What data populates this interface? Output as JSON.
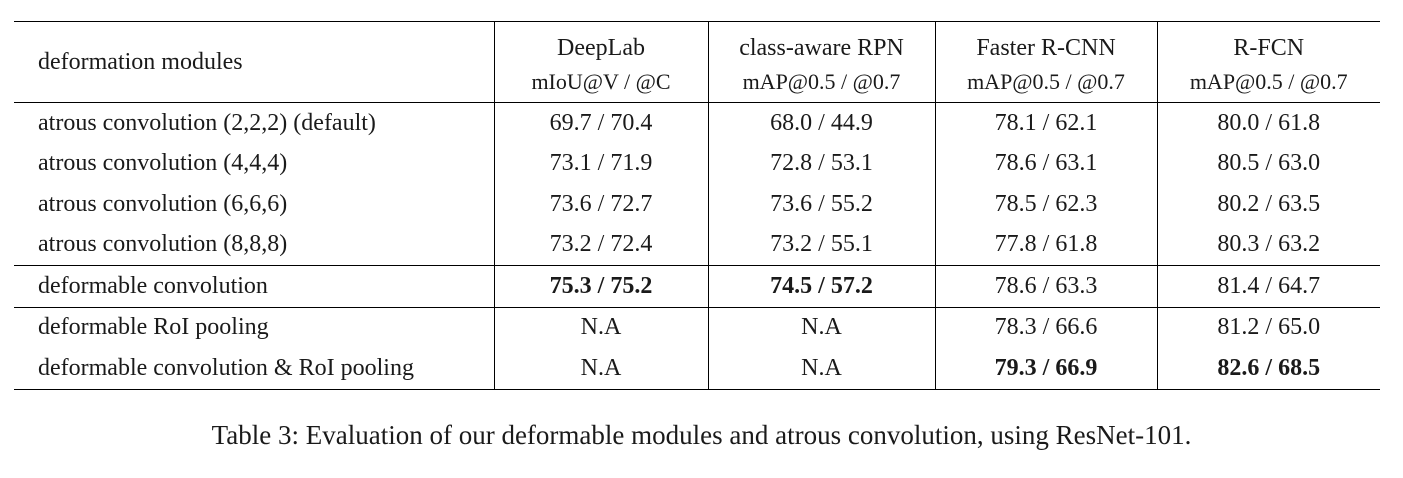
{
  "table": {
    "header": {
      "row_label": "deformation modules",
      "columns": [
        {
          "name": "DeepLab",
          "metric": "mIoU@V / @C"
        },
        {
          "name": "class-aware RPN",
          "metric": "mAP@0.5 / @0.7"
        },
        {
          "name": "Faster R-CNN",
          "metric": "mAP@0.5 / @0.7"
        },
        {
          "name": "R-FCN",
          "metric": "mAP@0.5 / @0.7"
        }
      ]
    },
    "groups": [
      {
        "rows": [
          {
            "label": "atrous convolution (2,2,2) (default)",
            "cells": [
              "69.7 / 70.4",
              "68.0 / 44.9",
              "78.1 / 62.1",
              "80.0 / 61.8"
            ],
            "bold": [
              false,
              false,
              false,
              false
            ]
          },
          {
            "label": "atrous convolution (4,4,4)",
            "cells": [
              "73.1 / 71.9",
              "72.8 / 53.1",
              "78.6 / 63.1",
              "80.5 / 63.0"
            ],
            "bold": [
              false,
              false,
              false,
              false
            ]
          },
          {
            "label": "atrous convolution (6,6,6)",
            "cells": [
              "73.6 / 72.7",
              "73.6 / 55.2",
              "78.5 / 62.3",
              "80.2 / 63.5"
            ],
            "bold": [
              false,
              false,
              false,
              false
            ]
          },
          {
            "label": "atrous convolution (8,8,8)",
            "cells": [
              "73.2 / 72.4",
              "73.2 / 55.1",
              "77.8 / 61.8",
              "80.3 / 63.2"
            ],
            "bold": [
              false,
              false,
              false,
              false
            ]
          }
        ]
      },
      {
        "rows": [
          {
            "label": "deformable convolution",
            "cells": [
              "75.3 / 75.2",
              "74.5 / 57.2",
              "78.6 / 63.3",
              "81.4 / 64.7"
            ],
            "bold": [
              true,
              true,
              false,
              false
            ]
          }
        ]
      },
      {
        "rows": [
          {
            "label": "deformable RoI pooling",
            "cells": [
              "N.A",
              "N.A",
              "78.3 / 66.6",
              "81.2 / 65.0"
            ],
            "bold": [
              false,
              false,
              false,
              false
            ]
          },
          {
            "label": "deformable convolution & RoI pooling",
            "cells": [
              "N.A",
              "N.A",
              "79.3 / 66.9",
              "82.6 / 68.5"
            ],
            "bold": [
              false,
              false,
              true,
              true
            ]
          }
        ]
      }
    ]
  },
  "caption": "Table 3: Evaluation of our deformable modules and atrous convolution, using ResNet-101."
}
